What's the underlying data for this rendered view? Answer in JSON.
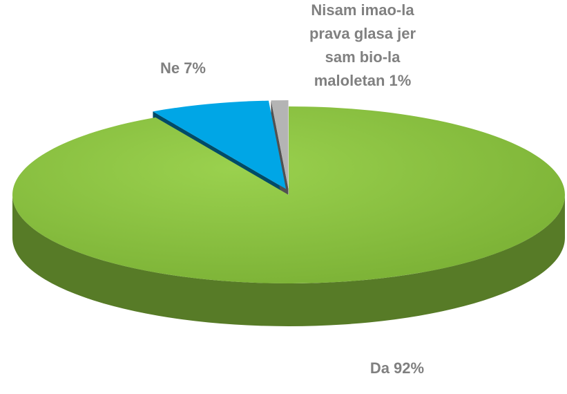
{
  "chart_data": {
    "type": "pie",
    "categories": [
      "Da",
      "Ne",
      "Nisam imao-la prava glasa jer sam bio-la maloletan"
    ],
    "values": [
      92,
      7,
      1
    ],
    "value_labels": [
      "92%",
      "7%",
      "1%"
    ],
    "colors": [
      "#8cc63f",
      "#00a6e6",
      "#b4b4b4"
    ]
  }
}
